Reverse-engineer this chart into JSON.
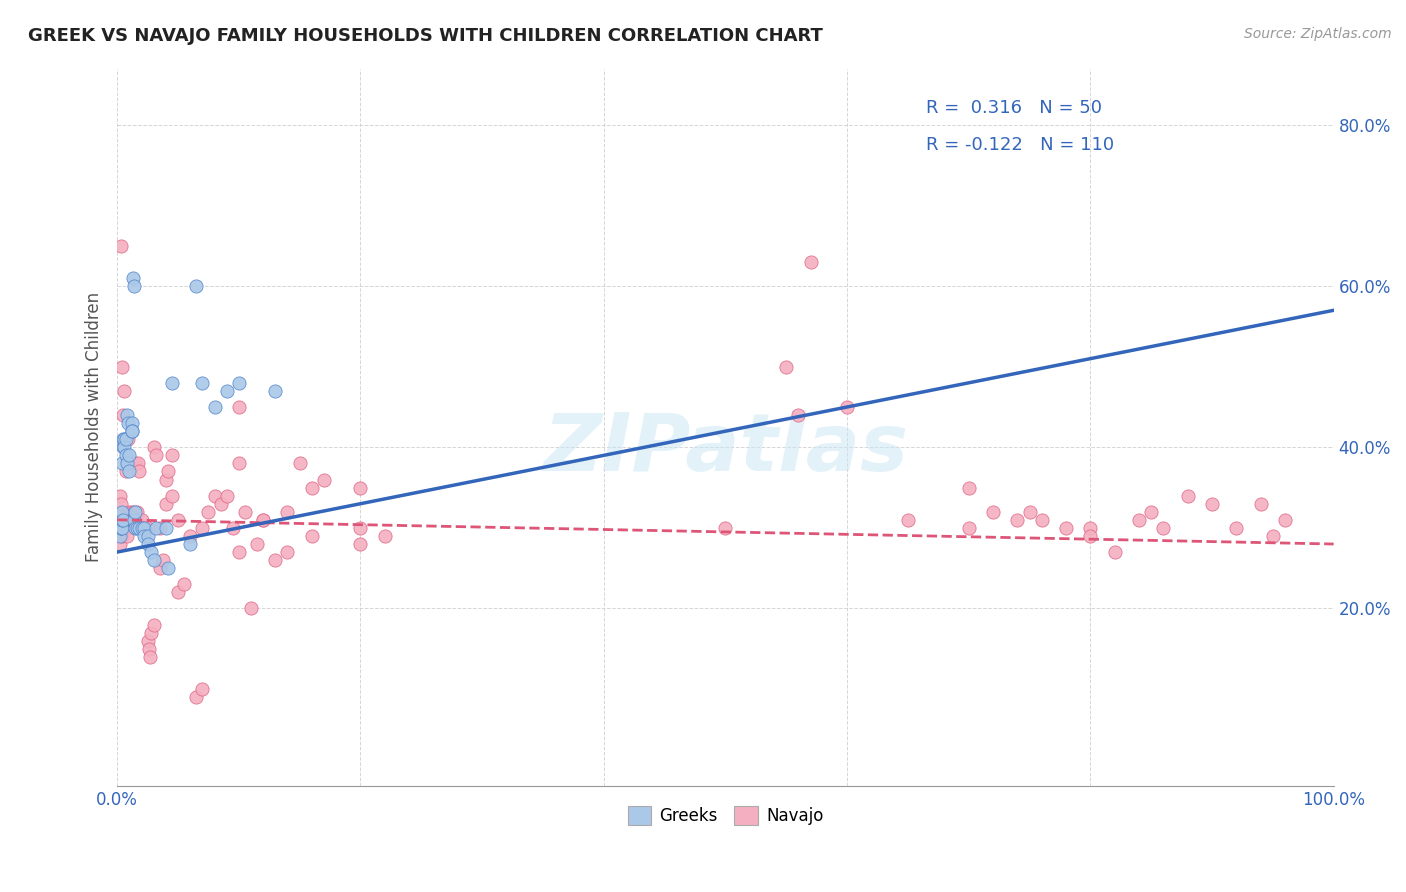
{
  "title": "GREEK VS NAVAJO FAMILY HOUSEHOLDS WITH CHILDREN CORRELATION CHART",
  "source": "Source: ZipAtlas.com",
  "ylabel": "Family Households with Children",
  "xlim": [
    0.0,
    1.0
  ],
  "ylim": [
    -0.02,
    0.87
  ],
  "xticks": [
    0.0,
    0.2,
    0.4,
    0.6,
    0.8,
    1.0
  ],
  "xtick_labels": [
    "0.0%",
    "",
    "",
    "",
    "",
    "100.0%"
  ],
  "yticks": [
    0.2,
    0.4,
    0.6,
    0.8
  ],
  "ytick_labels": [
    "20.0%",
    "40.0%",
    "60.0%",
    "80.0%"
  ],
  "greek_color": "#aac8e8",
  "navajo_color": "#f4b0c0",
  "greek_edge_color": "#5588cc",
  "navajo_edge_color": "#e06888",
  "greek_line_color": "#3366bb",
  "navajo_line_color": "#dd5577",
  "greek_R": 0.316,
  "greek_N": 50,
  "navajo_R": -0.122,
  "navajo_N": 110,
  "watermark": "ZIPatlas",
  "background_color": "#ffffff",
  "grid_color": "#cccccc",
  "greek_scatter": [
    [
      0.001,
      0.3
    ],
    [
      0.002,
      0.3
    ],
    [
      0.002,
      0.29
    ],
    [
      0.003,
      0.31
    ],
    [
      0.003,
      0.3
    ],
    [
      0.003,
      0.3
    ],
    [
      0.004,
      0.3
    ],
    [
      0.004,
      0.31
    ],
    [
      0.004,
      0.32
    ],
    [
      0.004,
      0.38
    ],
    [
      0.005,
      0.4
    ],
    [
      0.005,
      0.41
    ],
    [
      0.005,
      0.31
    ],
    [
      0.006,
      0.41
    ],
    [
      0.006,
      0.4
    ],
    [
      0.007,
      0.41
    ],
    [
      0.007,
      0.39
    ],
    [
      0.008,
      0.44
    ],
    [
      0.008,
      0.38
    ],
    [
      0.009,
      0.43
    ],
    [
      0.01,
      0.39
    ],
    [
      0.01,
      0.37
    ],
    [
      0.012,
      0.43
    ],
    [
      0.012,
      0.42
    ],
    [
      0.012,
      0.42
    ],
    [
      0.013,
      0.61
    ],
    [
      0.014,
      0.6
    ],
    [
      0.014,
      0.31
    ],
    [
      0.015,
      0.32
    ],
    [
      0.015,
      0.3
    ],
    [
      0.016,
      0.3
    ],
    [
      0.018,
      0.3
    ],
    [
      0.02,
      0.3
    ],
    [
      0.022,
      0.3
    ],
    [
      0.022,
      0.29
    ],
    [
      0.025,
      0.29
    ],
    [
      0.025,
      0.28
    ],
    [
      0.028,
      0.27
    ],
    [
      0.03,
      0.26
    ],
    [
      0.032,
      0.3
    ],
    [
      0.04,
      0.3
    ],
    [
      0.042,
      0.25
    ],
    [
      0.045,
      0.48
    ],
    [
      0.06,
      0.28
    ],
    [
      0.065,
      0.6
    ],
    [
      0.07,
      0.48
    ],
    [
      0.08,
      0.45
    ],
    [
      0.09,
      0.47
    ],
    [
      0.1,
      0.48
    ],
    [
      0.13,
      0.47
    ]
  ],
  "navajo_scatter": [
    [
      0.001,
      0.3
    ],
    [
      0.001,
      0.3
    ],
    [
      0.002,
      0.3
    ],
    [
      0.002,
      0.28
    ],
    [
      0.002,
      0.32
    ],
    [
      0.002,
      0.34
    ],
    [
      0.003,
      0.3
    ],
    [
      0.003,
      0.31
    ],
    [
      0.003,
      0.33
    ],
    [
      0.003,
      0.65
    ],
    [
      0.004,
      0.5
    ],
    [
      0.004,
      0.3
    ],
    [
      0.004,
      0.29
    ],
    [
      0.005,
      0.31
    ],
    [
      0.005,
      0.3
    ],
    [
      0.005,
      0.44
    ],
    [
      0.006,
      0.3
    ],
    [
      0.006,
      0.47
    ],
    [
      0.007,
      0.3
    ],
    [
      0.007,
      0.37
    ],
    [
      0.008,
      0.31
    ],
    [
      0.008,
      0.29
    ],
    [
      0.009,
      0.41
    ],
    [
      0.009,
      0.38
    ],
    [
      0.01,
      0.32
    ],
    [
      0.01,
      0.31
    ],
    [
      0.012,
      0.32
    ],
    [
      0.012,
      0.31
    ],
    [
      0.013,
      0.31
    ],
    [
      0.014,
      0.32
    ],
    [
      0.015,
      0.38
    ],
    [
      0.015,
      0.31
    ],
    [
      0.016,
      0.32
    ],
    [
      0.016,
      0.31
    ],
    [
      0.017,
      0.38
    ],
    [
      0.018,
      0.37
    ],
    [
      0.02,
      0.31
    ],
    [
      0.022,
      0.3
    ],
    [
      0.025,
      0.3
    ],
    [
      0.025,
      0.16
    ],
    [
      0.026,
      0.15
    ],
    [
      0.027,
      0.14
    ],
    [
      0.028,
      0.17
    ],
    [
      0.03,
      0.18
    ],
    [
      0.03,
      0.4
    ],
    [
      0.032,
      0.39
    ],
    [
      0.035,
      0.3
    ],
    [
      0.035,
      0.25
    ],
    [
      0.038,
      0.26
    ],
    [
      0.04,
      0.36
    ],
    [
      0.04,
      0.33
    ],
    [
      0.042,
      0.37
    ],
    [
      0.045,
      0.39
    ],
    [
      0.045,
      0.34
    ],
    [
      0.05,
      0.31
    ],
    [
      0.05,
      0.22
    ],
    [
      0.055,
      0.23
    ],
    [
      0.06,
      0.29
    ],
    [
      0.065,
      0.09
    ],
    [
      0.07,
      0.1
    ],
    [
      0.07,
      0.3
    ],
    [
      0.075,
      0.32
    ],
    [
      0.08,
      0.34
    ],
    [
      0.085,
      0.33
    ],
    [
      0.09,
      0.34
    ],
    [
      0.095,
      0.3
    ],
    [
      0.1,
      0.27
    ],
    [
      0.1,
      0.45
    ],
    [
      0.1,
      0.38
    ],
    [
      0.105,
      0.32
    ],
    [
      0.11,
      0.2
    ],
    [
      0.115,
      0.28
    ],
    [
      0.12,
      0.31
    ],
    [
      0.12,
      0.31
    ],
    [
      0.13,
      0.26
    ],
    [
      0.14,
      0.27
    ],
    [
      0.14,
      0.32
    ],
    [
      0.15,
      0.38
    ],
    [
      0.16,
      0.29
    ],
    [
      0.16,
      0.35
    ],
    [
      0.17,
      0.36
    ],
    [
      0.2,
      0.35
    ],
    [
      0.2,
      0.3
    ],
    [
      0.2,
      0.28
    ],
    [
      0.22,
      0.29
    ],
    [
      0.5,
      0.3
    ],
    [
      0.55,
      0.5
    ],
    [
      0.56,
      0.44
    ],
    [
      0.57,
      0.63
    ],
    [
      0.6,
      0.45
    ],
    [
      0.65,
      0.31
    ],
    [
      0.7,
      0.3
    ],
    [
      0.7,
      0.35
    ],
    [
      0.72,
      0.32
    ],
    [
      0.74,
      0.31
    ],
    [
      0.75,
      0.32
    ],
    [
      0.76,
      0.31
    ],
    [
      0.78,
      0.3
    ],
    [
      0.8,
      0.3
    ],
    [
      0.8,
      0.29
    ],
    [
      0.82,
      0.27
    ],
    [
      0.84,
      0.31
    ],
    [
      0.85,
      0.32
    ],
    [
      0.86,
      0.3
    ],
    [
      0.88,
      0.34
    ],
    [
      0.9,
      0.33
    ],
    [
      0.92,
      0.3
    ],
    [
      0.94,
      0.33
    ],
    [
      0.95,
      0.29
    ],
    [
      0.96,
      0.31
    ]
  ],
  "greek_trend_x": [
    0.0,
    1.0
  ],
  "greek_trend_y": [
    0.27,
    0.57
  ],
  "navajo_trend_x": [
    0.0,
    1.0
  ],
  "navajo_trend_y": [
    0.31,
    0.28
  ]
}
